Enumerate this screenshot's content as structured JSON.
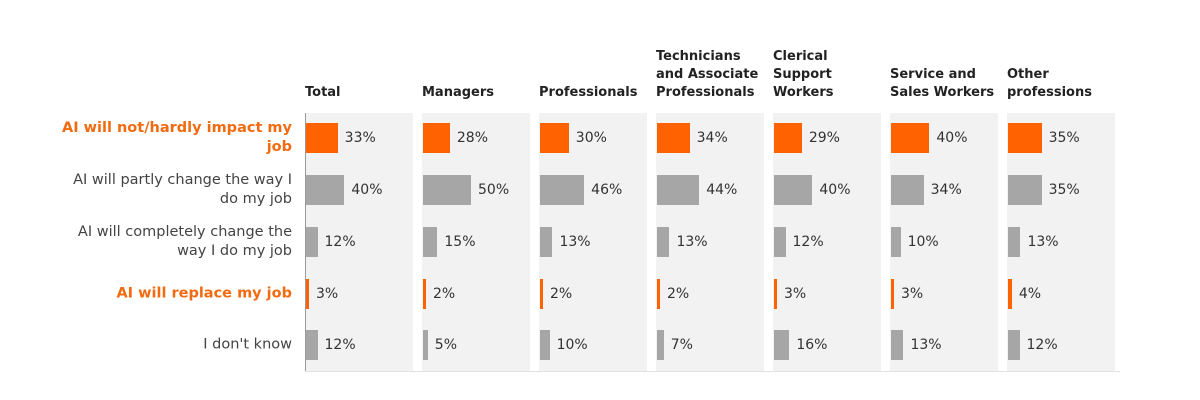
{
  "chart_data": {
    "type": "bar",
    "orientation": "horizontal",
    "categories": [
      "AI will not/hardly impact my job",
      "AI will partly change the way I do my job",
      "AI will completely change the way I do my job",
      "AI will replace my job",
      "I don't know"
    ],
    "highlighted_categories": [
      "AI will not/hardly impact my job",
      "AI will replace my job"
    ],
    "series": [
      {
        "name": "Total",
        "values": [
          33,
          40,
          12,
          3,
          12
        ]
      },
      {
        "name": "Managers",
        "values": [
          28,
          50,
          15,
          2,
          5
        ]
      },
      {
        "name": "Professionals",
        "values": [
          30,
          46,
          13,
          2,
          10
        ]
      },
      {
        "name": "Technicians and Associate Professionals",
        "values": [
          34,
          44,
          13,
          2,
          7
        ]
      },
      {
        "name": "Clerical Support Workers",
        "values": [
          29,
          40,
          12,
          3,
          16
        ]
      },
      {
        "name": "Service and Sales Workers",
        "values": [
          40,
          34,
          10,
          3,
          13
        ]
      },
      {
        "name": "Other professions",
        "values": [
          35,
          35,
          13,
          4,
          12
        ]
      }
    ],
    "value_suffix": "%",
    "xlim": [
      0,
      100
    ],
    "colors": {
      "highlight": "#ff6200",
      "default": "#a6a6a6",
      "panel": "#f2f2f2"
    }
  }
}
